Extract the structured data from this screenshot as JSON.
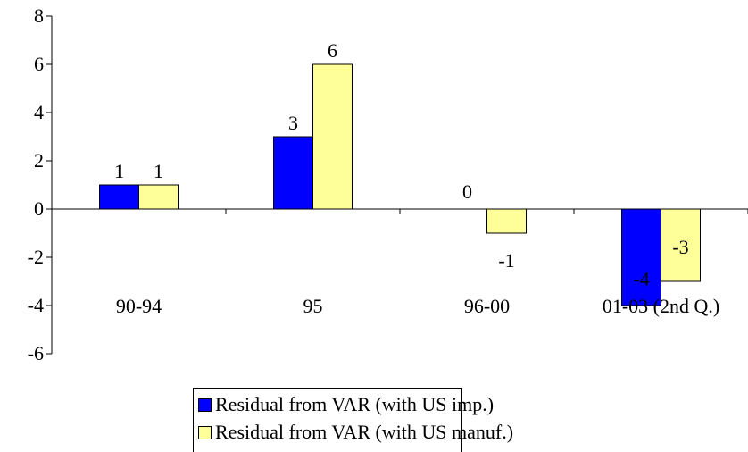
{
  "chart_data": {
    "type": "bar",
    "categories": [
      "90-94",
      "95",
      "96-00",
      "01-03 (2nd Q.)"
    ],
    "series": [
      {
        "name": "Residual from VAR (with US imp.)",
        "values": [
          1,
          3,
          0,
          -4
        ],
        "labels": [
          "1",
          "3",
          "0",
          "-4"
        ],
        "color": "#0000ff"
      },
      {
        "name": "Residual from VAR (with US manuf.)",
        "values": [
          1,
          6,
          -1,
          -3
        ],
        "labels": [
          "1",
          "6",
          "-1",
          "-3"
        ],
        "color": "#ffff99"
      }
    ],
    "ylim": [
      -6,
      8
    ],
    "yticks": [
      "-6",
      "-4",
      "-2",
      "0",
      "2",
      "4",
      "6",
      "8"
    ],
    "grid": false,
    "legend_position": "bottom"
  }
}
